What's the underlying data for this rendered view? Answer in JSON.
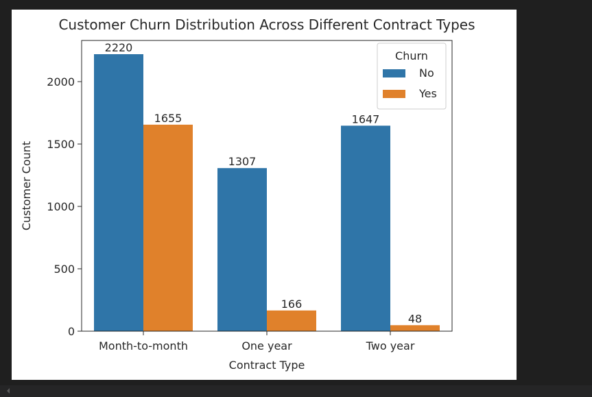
{
  "chart_data": {
    "type": "bar",
    "title": "Customer Churn Distribution Across Different Contract Types",
    "xlabel": "Contract Type",
    "ylabel": "Customer Count",
    "categories": [
      "Month-to-month",
      "One year",
      "Two year"
    ],
    "series": [
      {
        "name": "No",
        "values": [
          2220,
          1307,
          1647
        ],
        "color": "#2f75a8"
      },
      {
        "name": "Yes",
        "values": [
          1655,
          166,
          48
        ],
        "color": "#e0812b"
      }
    ],
    "ylim": [
      0,
      2330
    ],
    "yticks": [
      0,
      500,
      1000,
      1500,
      2000
    ],
    "grid": false,
    "legend": {
      "title": "Churn",
      "placement": "top-right"
    }
  }
}
